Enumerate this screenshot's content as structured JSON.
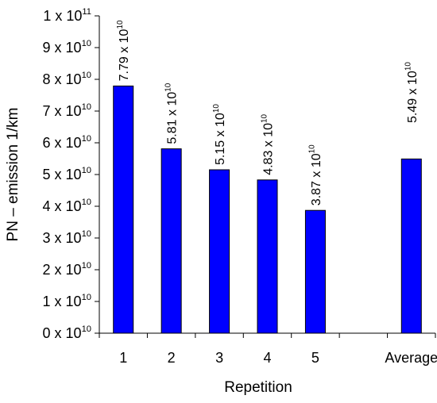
{
  "chart_data": {
    "type": "bar",
    "xlabel": "Repetition",
    "ylabel": "PN – emission 1/km",
    "categories": [
      "1",
      "2",
      "3",
      "4",
      "5",
      "",
      "Average"
    ],
    "values": [
      77900000000.0,
      58100000000.0,
      51500000000.0,
      48300000000.0,
      38700000000.0,
      null,
      54900000000.0
    ],
    "data_labels": [
      {
        "mantissa": "7.79",
        "base": "x 10",
        "exp": "10"
      },
      {
        "mantissa": "5.81",
        "base": "x 10",
        "exp": "10"
      },
      {
        "mantissa": "5.15",
        "base": "x 10",
        "exp": "10"
      },
      {
        "mantissa": "4.83",
        "base": "x 10",
        "exp": "10"
      },
      {
        "mantissa": "3.87",
        "base": "x 10",
        "exp": "10"
      },
      null,
      {
        "mantissa": "5.49",
        "base": "x 10",
        "exp": "10"
      }
    ],
    "ylim": [
      0,
      100000000000.0
    ],
    "y_ticks": [
      {
        "value": 0,
        "mantissa": "0",
        "base": "x 10",
        "exp": "10"
      },
      {
        "value": 10000000000.0,
        "mantissa": "1",
        "base": "x 10",
        "exp": "10"
      },
      {
        "value": 20000000000.0,
        "mantissa": "2",
        "base": "x 10",
        "exp": "10"
      },
      {
        "value": 30000000000.0,
        "mantissa": "3",
        "base": "x 10",
        "exp": "10"
      },
      {
        "value": 40000000000.0,
        "mantissa": "4",
        "base": "x 10",
        "exp": "10"
      },
      {
        "value": 50000000000.0,
        "mantissa": "5",
        "base": "x 10",
        "exp": "10"
      },
      {
        "value": 60000000000.0,
        "mantissa": "6",
        "base": "x 10",
        "exp": "10"
      },
      {
        "value": 70000000000.0,
        "mantissa": "7",
        "base": "x 10",
        "exp": "10"
      },
      {
        "value": 80000000000.0,
        "mantissa": "8",
        "base": "x 10",
        "exp": "10"
      },
      {
        "value": 90000000000.0,
        "mantissa": "9",
        "base": "x 10",
        "exp": "10"
      },
      {
        "value": 100000000000.0,
        "mantissa": "1",
        "base": "x 10",
        "exp": "11"
      }
    ],
    "grid": false,
    "legend": "none",
    "bar_color": "#0000ff",
    "bar_edge_color": "#000000"
  }
}
